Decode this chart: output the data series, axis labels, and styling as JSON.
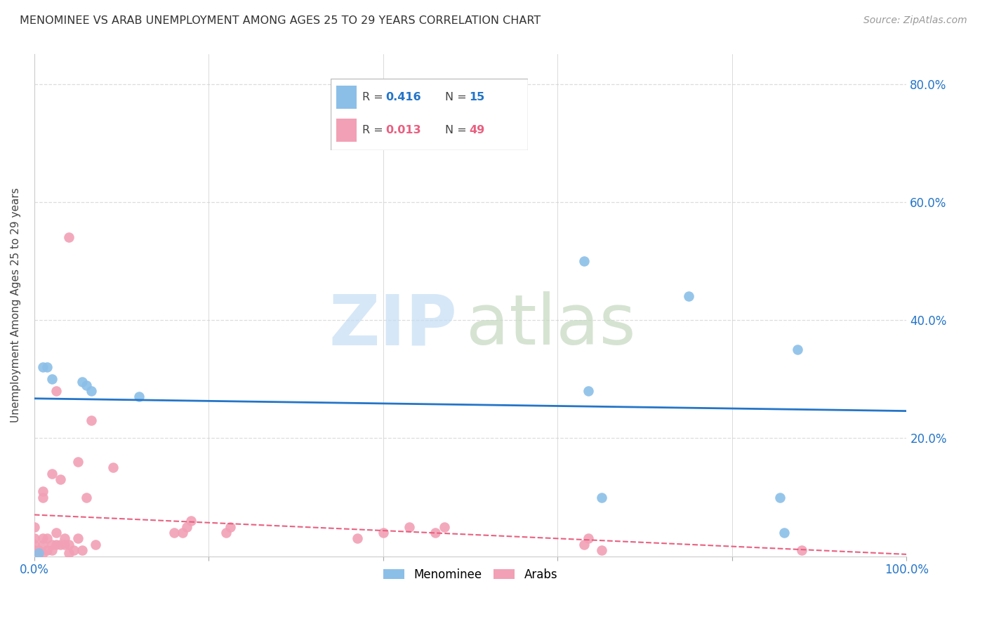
{
  "title": "MENOMINEE VS ARAB UNEMPLOYMENT AMONG AGES 25 TO 29 YEARS CORRELATION CHART",
  "source": "Source: ZipAtlas.com",
  "ylabel": "Unemployment Among Ages 25 to 29 years",
  "xlim": [
    0,
    1.0
  ],
  "ylim": [
    0,
    0.85
  ],
  "background_color": "#ffffff",
  "grid_color": "#dddddd",
  "menominee_color": "#8bbfe8",
  "arab_color": "#f2a0b5",
  "menominee_line_color": "#2475c8",
  "arab_line_color": "#e86080",
  "legend_R_menominee": "0.416",
  "legend_N_menominee": "15",
  "legend_R_arab": "0.013",
  "legend_N_arab": "49",
  "menominee_x": [
    0.005,
    0.01,
    0.015,
    0.02,
    0.055,
    0.06,
    0.065,
    0.12,
    0.63,
    0.635,
    0.65,
    0.75,
    0.855,
    0.86,
    0.875
  ],
  "menominee_y": [
    0.005,
    0.32,
    0.32,
    0.3,
    0.295,
    0.29,
    0.28,
    0.27,
    0.5,
    0.28,
    0.1,
    0.44,
    0.1,
    0.04,
    0.35
  ],
  "arab_x": [
    0.0,
    0.0,
    0.0,
    0.0,
    0.005,
    0.005,
    0.01,
    0.01,
    0.01,
    0.01,
    0.01,
    0.015,
    0.015,
    0.02,
    0.02,
    0.02,
    0.025,
    0.025,
    0.025,
    0.03,
    0.03,
    0.035,
    0.035,
    0.04,
    0.04,
    0.04,
    0.045,
    0.05,
    0.05,
    0.055,
    0.06,
    0.065,
    0.07,
    0.09,
    0.16,
    0.17,
    0.175,
    0.18,
    0.22,
    0.225,
    0.37,
    0.4,
    0.43,
    0.46,
    0.47,
    0.63,
    0.635,
    0.65,
    0.88
  ],
  "arab_y": [
    0.01,
    0.02,
    0.03,
    0.05,
    0.005,
    0.01,
    0.005,
    0.02,
    0.03,
    0.1,
    0.11,
    0.01,
    0.03,
    0.01,
    0.02,
    0.14,
    0.02,
    0.04,
    0.28,
    0.02,
    0.13,
    0.02,
    0.03,
    0.005,
    0.02,
    0.54,
    0.01,
    0.03,
    0.16,
    0.01,
    0.1,
    0.23,
    0.02,
    0.15,
    0.04,
    0.04,
    0.05,
    0.06,
    0.04,
    0.05,
    0.03,
    0.04,
    0.05,
    0.04,
    0.05,
    0.02,
    0.03,
    0.01,
    0.01
  ],
  "ytick_positions": [
    0.0,
    0.2,
    0.4,
    0.6,
    0.8
  ],
  "ytick_labels": [
    "",
    "20.0%",
    "40.0%",
    "60.0%",
    "80.0%"
  ],
  "xtick_positions": [
    0.0,
    0.2,
    0.4,
    0.6,
    0.8,
    1.0
  ],
  "xtick_labels": [
    "0.0%",
    "",
    "",
    "",
    "",
    "100.0%"
  ]
}
